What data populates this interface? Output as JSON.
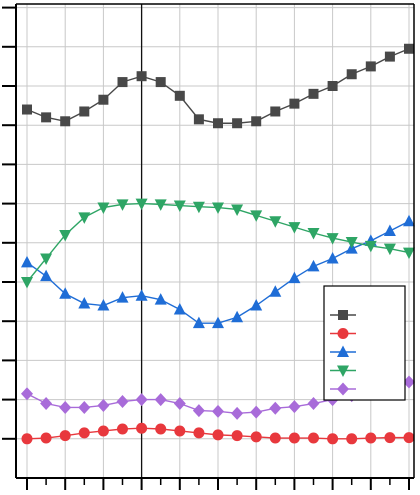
{
  "chart_data": {
    "type": "line",
    "title": "",
    "xlabel": "",
    "ylabel": "",
    "x": [
      0,
      1,
      2,
      3,
      4,
      5,
      6,
      7,
      8,
      9,
      10,
      11,
      12,
      13,
      14,
      15,
      16,
      17,
      18,
      19,
      20
    ],
    "xlim": [
      -0.3,
      20.15
    ],
    "ylim": [
      0,
      12.4
    ],
    "grid": true,
    "legend_position": "right",
    "vertical_marker_x": 6,
    "series": [
      {
        "color": "#484848",
        "marker": "square",
        "values": [
          9.4,
          9.2,
          9.1,
          9.35,
          9.65,
          10.1,
          10.25,
          10.1,
          9.75,
          9.15,
          9.05,
          9.05,
          9.1,
          9.35,
          9.55,
          9.8,
          10.0,
          10.3,
          10.5,
          10.75,
          10.95
        ]
      },
      {
        "color": "#e8383d",
        "marker": "circle",
        "values": [
          1.0,
          1.02,
          1.08,
          1.15,
          1.2,
          1.25,
          1.27,
          1.25,
          1.2,
          1.15,
          1.1,
          1.08,
          1.05,
          1.02,
          1.02,
          1.02,
          1.0,
          1.0,
          1.02,
          1.03,
          1.03
        ]
      },
      {
        "color": "#1f6dd6",
        "marker": "triangle",
        "values": [
          5.5,
          5.15,
          4.7,
          4.45,
          4.4,
          4.6,
          4.65,
          4.55,
          4.3,
          3.95,
          3.95,
          4.1,
          4.4,
          4.75,
          5.1,
          5.4,
          5.6,
          5.85,
          6.05,
          6.3,
          6.55
        ]
      },
      {
        "color": "#2ea565",
        "marker": "triangle-down",
        "values": [
          5.0,
          5.6,
          6.2,
          6.65,
          6.9,
          6.98,
          7.0,
          6.98,
          6.95,
          6.92,
          6.9,
          6.85,
          6.7,
          6.55,
          6.4,
          6.25,
          6.12,
          6.02,
          5.92,
          5.85,
          5.75
        ]
      },
      {
        "color": "#a86bd9",
        "marker": "diamond",
        "values": [
          2.15,
          1.9,
          1.8,
          1.8,
          1.85,
          1.95,
          2.0,
          2.0,
          1.9,
          1.72,
          1.7,
          1.65,
          1.68,
          1.78,
          1.82,
          1.9,
          2.0,
          2.1,
          2.22,
          2.32,
          2.45
        ]
      }
    ]
  }
}
